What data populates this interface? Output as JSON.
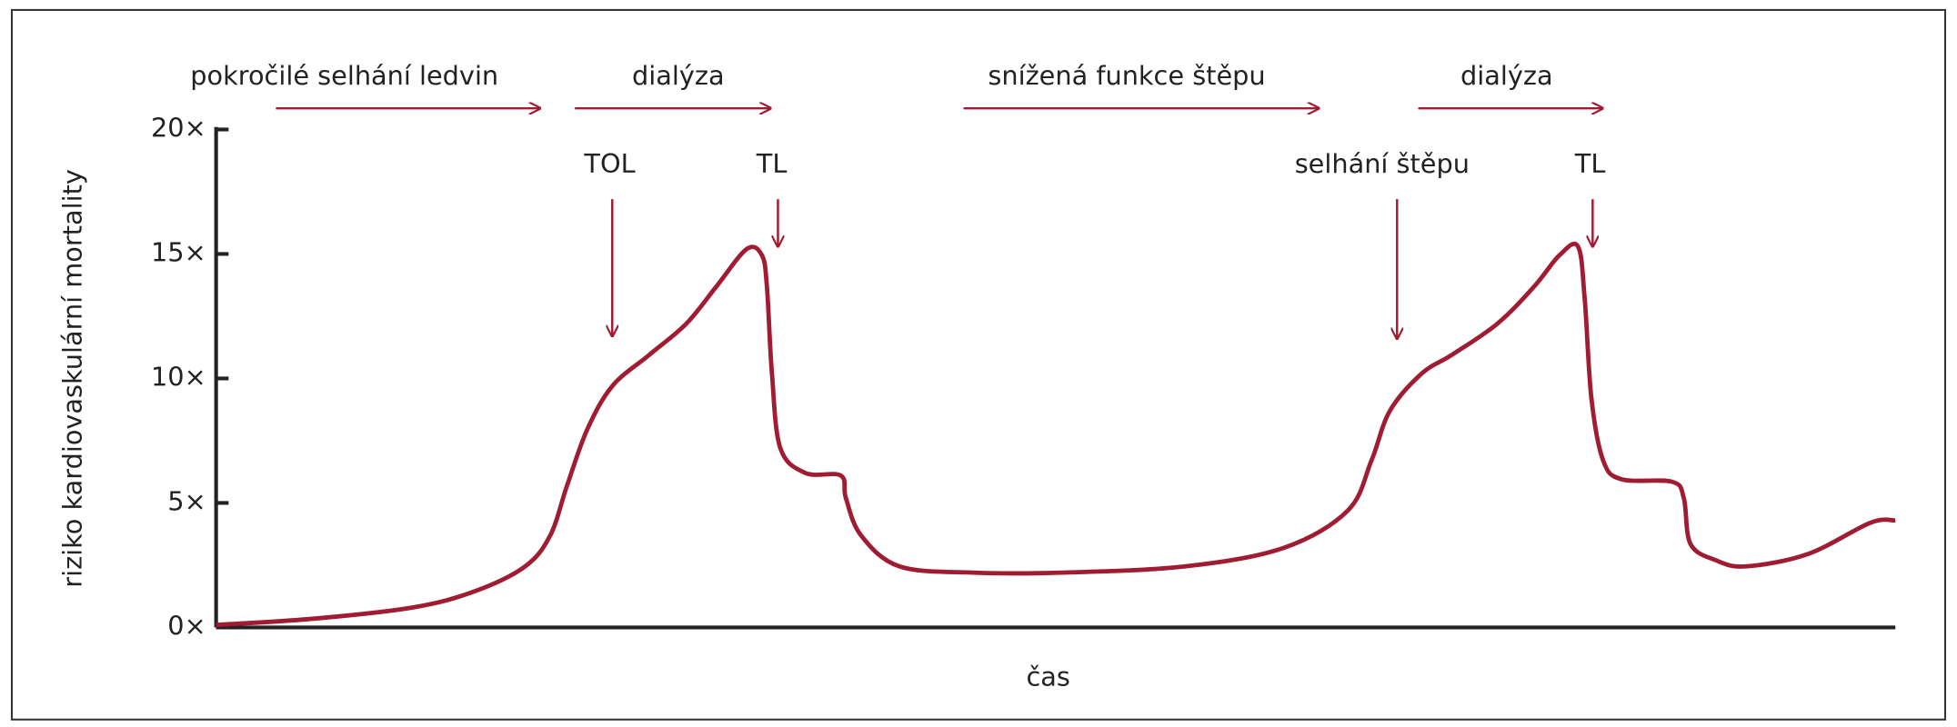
{
  "chart_data": {
    "type": "line",
    "ylabel": "riziko kardiovaskulární mortality",
    "xlabel": "čas",
    "annotations": [
      "pokročilé selhání ledvin",
      "dialýza",
      "snížená funkce štěpu",
      "dialýza",
      "TOL",
      "TL",
      "selhání štěpu",
      "TL"
    ],
    "x": [
      0,
      5.8,
      11.7,
      15.4,
      18.4,
      19.9,
      20.9,
      22.1,
      23.6,
      25.8,
      28.0,
      29.8,
      31.6,
      32.5,
      32.8,
      33.1,
      33.6,
      35.1,
      37.2,
      37.5,
      38.4,
      40.7,
      45.1,
      50.3,
      57.7,
      63.6,
      67.4,
      68.8,
      69.9,
      71.8,
      73.6,
      76.3,
      78.5,
      80.0,
      81.1,
      81.5,
      81.9,
      82.6,
      83.7,
      86.7,
      87.4,
      87.8,
      89.3,
      91.1,
      94.8,
      98.5,
      100
    ],
    "series": [
      {
        "color": "#a01c33",
        "values": [
          0.1,
          0.35,
          0.8,
          1.45,
          2.45,
          3.7,
          5.7,
          7.95,
          9.7,
          10.95,
          12.2,
          13.7,
          15.2,
          14.95,
          13.7,
          10.2,
          7.2,
          6.2,
          6.1,
          5.2,
          3.7,
          2.45,
          2.2,
          2.2,
          2.45,
          3.2,
          4.7,
          6.7,
          8.7,
          10.2,
          10.95,
          12.2,
          13.7,
          14.95,
          15.3,
          13.2,
          9.2,
          6.7,
          5.95,
          5.85,
          5.2,
          3.35,
          2.7,
          2.45,
          2.95,
          4.2,
          4.3
        ]
      }
    ],
    "xlim": [
      0,
      100
    ],
    "ylim": [
      0,
      20
    ],
    "yticks": [
      {
        "value": 0,
        "label": "0×"
      },
      {
        "value": 5,
        "label": "5×"
      },
      {
        "value": 10,
        "label": "10×"
      },
      {
        "value": 15,
        "label": "15×"
      },
      {
        "value": 20,
        "label": "20×"
      }
    ]
  }
}
